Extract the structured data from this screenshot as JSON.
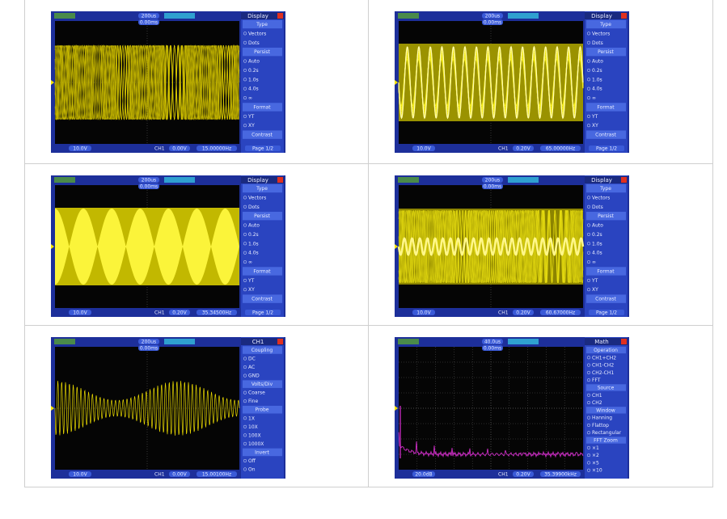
{
  "screens": [
    {
      "title": "Display",
      "timebase": "200us",
      "trigger_time": "0.00ms",
      "ch_scale": "10.0V",
      "trigger_source": "CH1",
      "trigger_level": "0.00V",
      "frequency": "15.00000Hz",
      "menu": [
        {
          "heading": "Type",
          "items": [
            "Vectors",
            "Dots"
          ]
        },
        {
          "heading": "Persist",
          "items": [
            "Auto",
            "0.2s",
            "1.0s",
            "4.0s",
            "∞"
          ]
        },
        {
          "heading": "Format",
          "items": [
            "YT",
            "XY"
          ]
        },
        {
          "heading": "Contrast",
          "items": []
        }
      ],
      "page": "Page 1/2"
    },
    {
      "title": "Display",
      "timebase": "200us",
      "trigger_time": "0.00ms",
      "ch_scale": "10.0V",
      "trigger_source": "CH1",
      "trigger_level": "0.20V",
      "frequency": "65.00000Hz",
      "menu": [
        {
          "heading": "Type",
          "items": [
            "Vectors",
            "Dots"
          ]
        },
        {
          "heading": "Persist",
          "items": [
            "Auto",
            "0.2s",
            "1.0s",
            "4.0s",
            "∞"
          ]
        },
        {
          "heading": "Format",
          "items": [
            "YT",
            "XY"
          ]
        },
        {
          "heading": "Contrast",
          "items": []
        }
      ],
      "page": "Page 1/2"
    },
    {
      "title": "Display",
      "timebase": "200us",
      "trigger_time": "0.00ms",
      "ch_scale": "10.0V",
      "trigger_source": "CH1",
      "trigger_level": "0.20V",
      "frequency": "35.34500Hz",
      "menu": [
        {
          "heading": "Type",
          "items": [
            "Vectors",
            "Dots"
          ]
        },
        {
          "heading": "Persist",
          "items": [
            "Auto",
            "0.2s",
            "1.0s",
            "4.0s",
            "∞"
          ]
        },
        {
          "heading": "Format",
          "items": [
            "YT",
            "XY"
          ]
        },
        {
          "heading": "Contrast",
          "items": []
        }
      ],
      "page": "Page 1/2"
    },
    {
      "title": "Display",
      "timebase": "200us",
      "trigger_time": "0.00ms",
      "ch_scale": "10.0V",
      "trigger_source": "CH1",
      "trigger_level": "0.20V",
      "frequency": "60.67000Hz",
      "menu": [
        {
          "heading": "Type",
          "items": [
            "Vectors",
            "Dots"
          ]
        },
        {
          "heading": "Persist",
          "items": [
            "Auto",
            "0.2s",
            "1.0s",
            "4.0s",
            "∞"
          ]
        },
        {
          "heading": "Format",
          "items": [
            "YT",
            "XY"
          ]
        },
        {
          "heading": "Contrast",
          "items": []
        }
      ],
      "page": "Page 1/2"
    },
    {
      "title": "CH1",
      "timebase": "200us",
      "trigger_time": "0.00ms",
      "ch_scale": "10.0V",
      "trigger_source": "CH1",
      "trigger_level": "0.00V",
      "frequency": "15.00100Hz",
      "menu": [
        {
          "heading": "Coupling",
          "items": [
            "DC",
            "AC",
            "GND"
          ]
        },
        {
          "heading": "Volts/Div",
          "items": [
            "Coarse",
            "Fine"
          ]
        },
        {
          "heading": "Probe",
          "items": [
            "1X",
            "10X",
            "100X",
            "1000X"
          ]
        },
        {
          "heading": "Invert",
          "items": [
            "Off",
            "On"
          ]
        }
      ]
    },
    {
      "title": "Math",
      "timebase": "40.0us",
      "trigger_time": "0.00ms",
      "ch_scale": "20.0dB",
      "trigger_source": "CH1",
      "trigger_level": "0.20V",
      "frequency": "35.39900kHz",
      "menu": [
        {
          "heading": "Operation",
          "items": [
            "CH1+CH2",
            "CH1-CH2",
            "CH2-CH1",
            "FFT"
          ]
        },
        {
          "heading": "Source",
          "items": [
            "CH1",
            "CH2"
          ]
        },
        {
          "heading": "Window",
          "items": [
            "Hanning",
            "Flattop",
            "Rectangular"
          ]
        },
        {
          "heading": "FFT Zoom",
          "items": [
            "×1",
            "×2",
            "×5",
            "×10"
          ]
        }
      ]
    }
  ]
}
